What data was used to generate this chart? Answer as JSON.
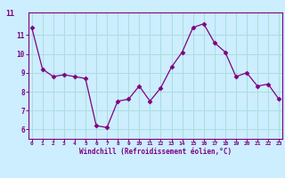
{
  "x": [
    0,
    1,
    2,
    3,
    4,
    5,
    6,
    7,
    8,
    9,
    10,
    11,
    12,
    13,
    14,
    15,
    16,
    17,
    18,
    19,
    20,
    21,
    22,
    23
  ],
  "y": [
    11.4,
    9.2,
    8.8,
    8.9,
    8.8,
    8.7,
    6.2,
    6.1,
    7.5,
    7.6,
    8.3,
    7.5,
    8.2,
    9.3,
    10.1,
    11.4,
    11.6,
    10.6,
    10.1,
    8.8,
    9.0,
    8.3,
    8.4,
    7.6
  ],
  "line_color": "#800080",
  "marker": "D",
  "marker_size": 2.5,
  "bg_color": "#cceeff",
  "grid_color": "#aadddd",
  "xlabel": "Windchill (Refroidissement éolien,°C)",
  "xlabel_color": "#800080",
  "tick_color": "#800080",
  "ylim": [
    5.5,
    12.2
  ],
  "xlim": [
    -0.3,
    23.3
  ],
  "yticks": [
    6,
    7,
    8,
    9,
    10,
    11
  ],
  "xticks": [
    0,
    1,
    2,
    3,
    4,
    5,
    6,
    7,
    8,
    9,
    10,
    11,
    12,
    13,
    14,
    15,
    16,
    17,
    18,
    19,
    20,
    21,
    22,
    23
  ],
  "spine_color": "#800080",
  "font_family": "monospace"
}
